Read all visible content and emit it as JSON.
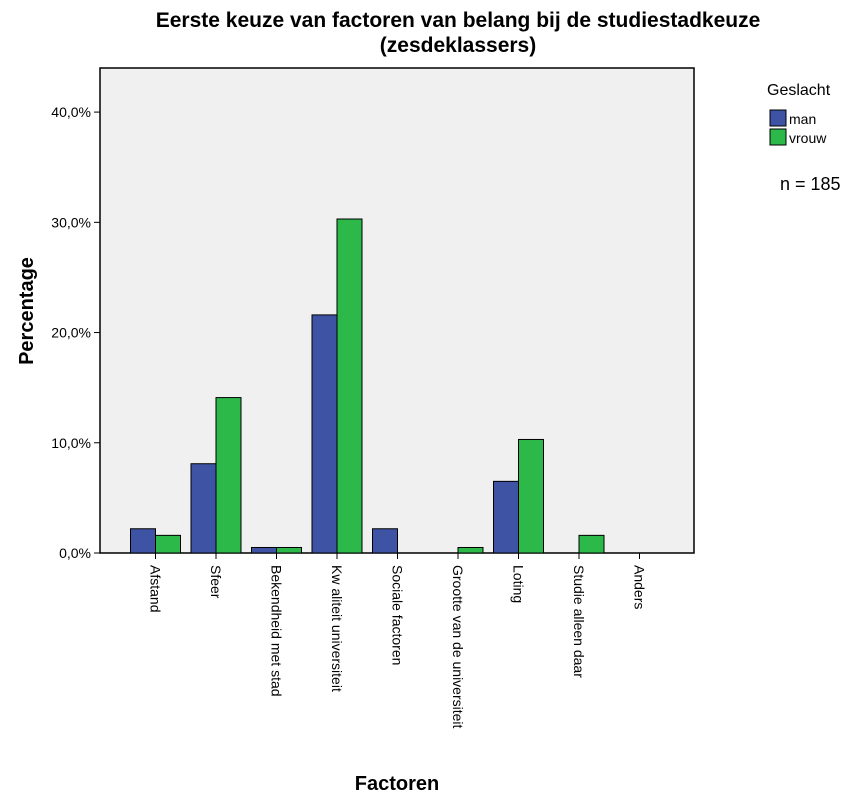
{
  "chart_data": {
    "type": "bar",
    "title": "Eerste keuze van factoren van belang bij de studiestadkeuze",
    "subtitle": "(zesdeklassers)",
    "xlabel": "Factoren",
    "ylabel": "Percentage",
    "ylim": [
      0,
      44
    ],
    "yticks": [
      "0,0%",
      "10,0%",
      "20,0%",
      "30,0%",
      "40,0%"
    ],
    "ytick_values": [
      0,
      10,
      20,
      30,
      40
    ],
    "categories": [
      "Afstand",
      "Sfeer",
      "Bekendheid met stad",
      "Kw aliteit universiteit",
      "Sociale factoren",
      "Grootte van de universiteit",
      "Loting",
      "Studie alleen daar",
      "Anders"
    ],
    "series": [
      {
        "name": "man",
        "color": "#3e53a4",
        "values": [
          2.2,
          8.1,
          0.5,
          21.6,
          2.2,
          0,
          6.5,
          0,
          0
        ]
      },
      {
        "name": "vrouw",
        "color": "#2db84a",
        "values": [
          1.6,
          14.1,
          0.5,
          30.3,
          0,
          0.5,
          10.3,
          1.6,
          0
        ]
      }
    ],
    "legend_title": "Geslacht",
    "legend_position": "top-right",
    "annotation": "n = 185",
    "plot_background": "#f0f0f0",
    "grid": false
  }
}
